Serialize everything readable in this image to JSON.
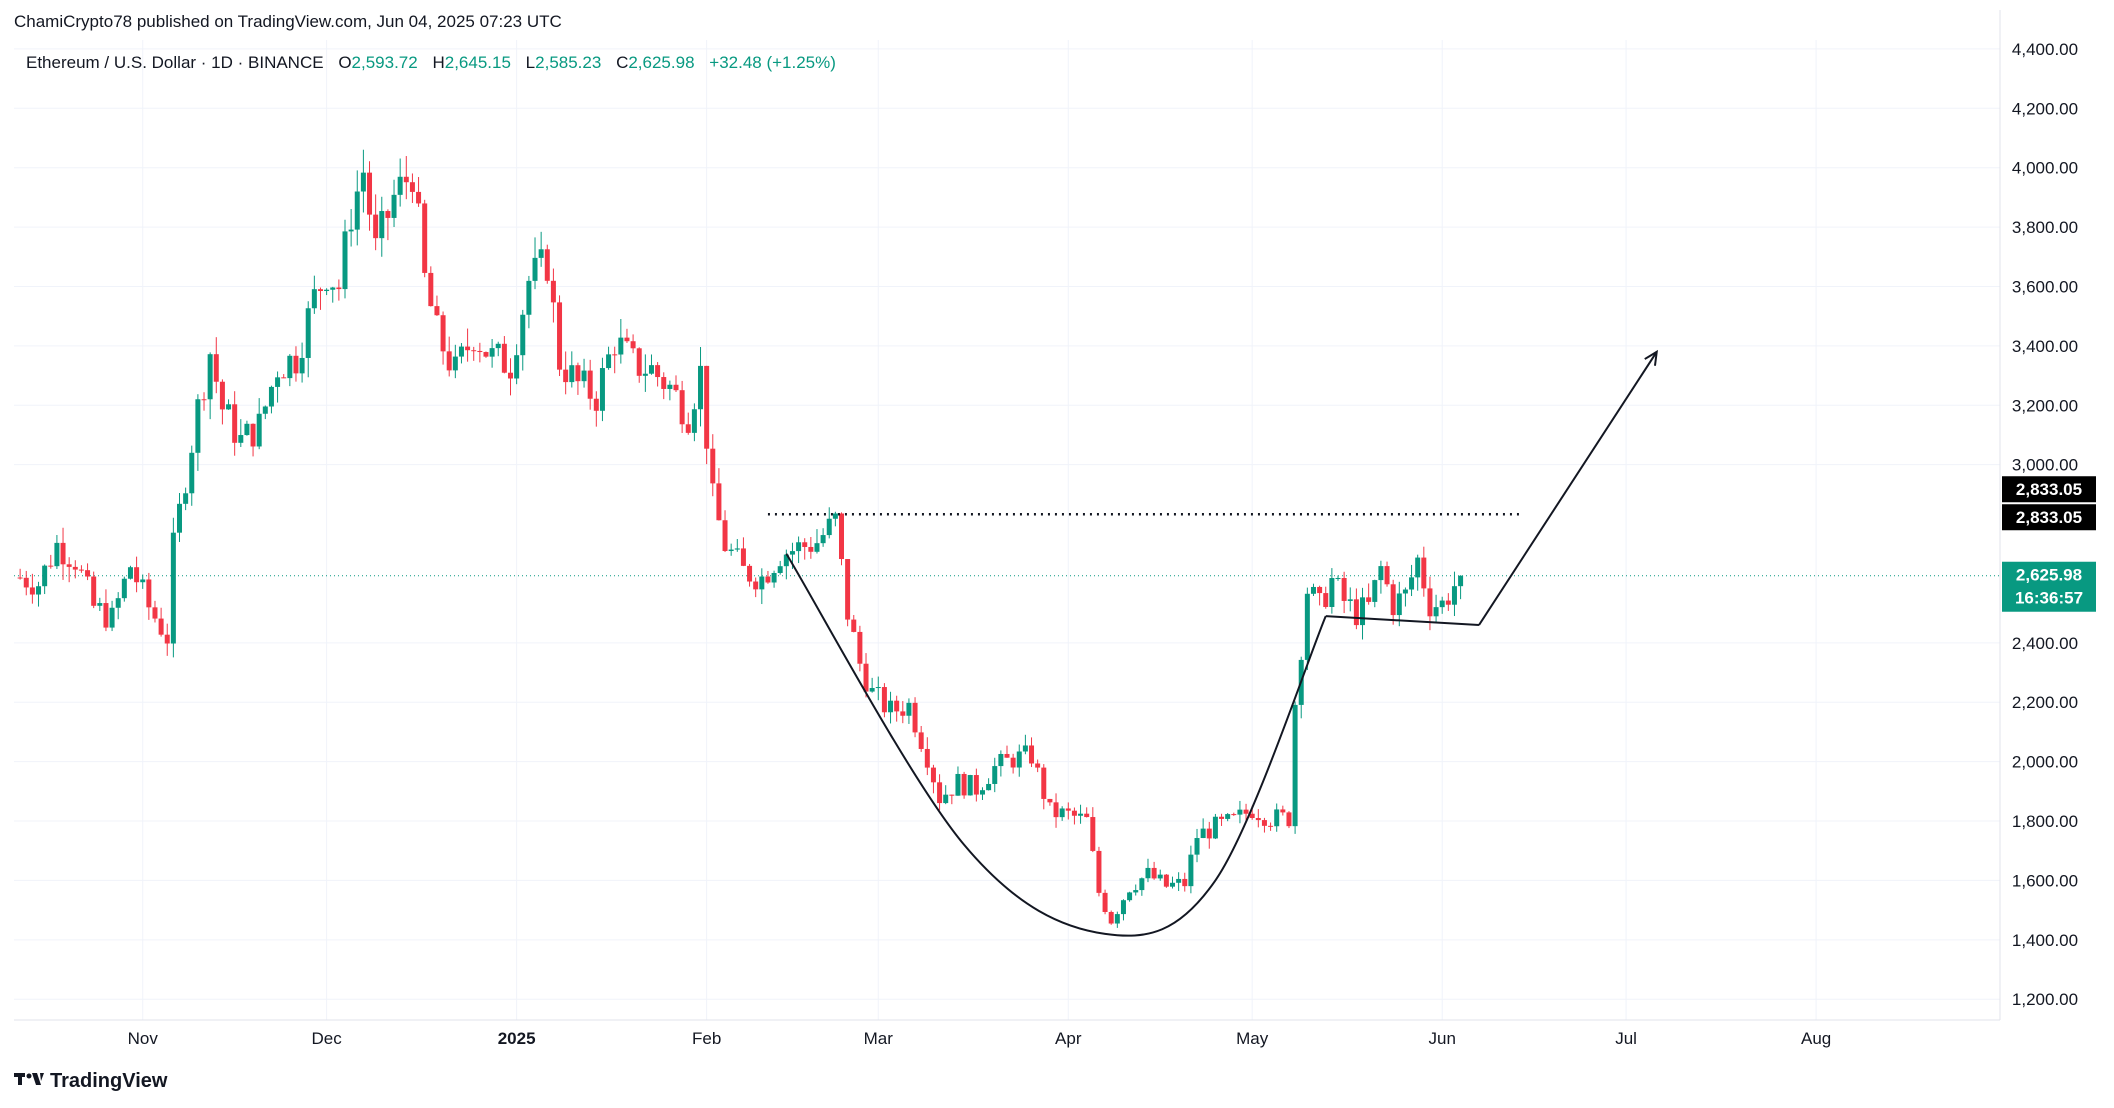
{
  "header": {
    "published": "ChamiCrypto78 published on TradingView.com, Jun 04, 2025 07:23 UTC"
  },
  "legend": {
    "symbol": "Ethereum / U.S. Dollar · 1D · BINANCE",
    "o_label": "O",
    "o_value": "2,593.72",
    "h_label": "H",
    "h_value": "2,645.15",
    "l_label": "L",
    "l_value": "2,585.23",
    "c_label": "C",
    "c_value": "2,625.98",
    "change": "+32.48 (+1.25%)"
  },
  "footer": {
    "brand": "TradingView",
    "logo_icon": "tradingview-logo-icon"
  },
  "colors": {
    "up": "#089981",
    "down": "#f23645",
    "grid": "#f0f3fa",
    "line": "#131722"
  },
  "chart_data": {
    "type": "candlestick",
    "price_ticks": [
      "4,400.00",
      "4,200.00",
      "4,000.00",
      "3,800.00",
      "3,600.00",
      "3,400.00",
      "3,200.00",
      "3,000.00",
      "2,400.00",
      "2,200.00",
      "2,000.00",
      "1,800.00",
      "1,600.00",
      "1,400.00",
      "1,200.00"
    ],
    "price_tick_values": [
      4400,
      4200,
      4000,
      3800,
      3600,
      3400,
      3200,
      3000,
      2400,
      2200,
      2000,
      1800,
      1600,
      1400,
      1200
    ],
    "ylim": [
      1130,
      4430
    ],
    "time_labels": [
      "Nov",
      "Dec",
      "2025",
      "Feb",
      "Mar",
      "Apr",
      "May",
      "Jun",
      "Jul",
      "Aug"
    ],
    "time_label_dates": [
      "2024-11-01",
      "2024-12-01",
      "2025-01-01",
      "2025-02-01",
      "2025-03-01",
      "2025-04-01",
      "2025-05-01",
      "2025-06-01",
      "2025-07-01",
      "2025-08-01"
    ],
    "xlim": [
      "2024-10-11",
      "2025-08-31"
    ],
    "last_price": "2,625.98",
    "last_price_value": 2625.98,
    "countdown": "16:36:57",
    "resistance": {
      "value": 2833.05,
      "labels": [
        "2,833.05",
        "2,833.05"
      ],
      "from": "2025-02-11",
      "to": "2025-06-14"
    },
    "cup_curve": [
      [
        "2025-02-14",
        2700
      ],
      [
        "2025-03-15",
        1720
      ],
      [
        "2025-04-07",
        1420
      ],
      [
        "2025-04-25",
        1600
      ],
      [
        "2025-05-13",
        2490
      ]
    ],
    "handle_line": [
      [
        "2025-05-13",
        2490
      ],
      [
        "2025-06-07",
        2460
      ]
    ],
    "projection_arrow": [
      [
        "2025-06-07",
        2460
      ],
      [
        "2025-07-06",
        3380
      ]
    ],
    "ohlc_sample": [
      {
        "d": "2024-10-12",
        "c": 2620
      },
      {
        "d": "2024-10-15",
        "c": 2600
      },
      {
        "d": "2024-10-18",
        "c": 2730
      },
      {
        "d": "2024-10-21",
        "c": 2680
      },
      {
        "d": "2024-10-24",
        "c": 2520
      },
      {
        "d": "2024-10-27",
        "c": 2480
      },
      {
        "d": "2024-10-30",
        "c": 2660
      },
      {
        "d": "2024-11-02",
        "c": 2520
      },
      {
        "d": "2024-11-05",
        "c": 2420
      },
      {
        "d": "2024-11-06",
        "c": 2720
      },
      {
        "d": "2024-11-08",
        "c": 2960
      },
      {
        "d": "2024-11-10",
        "c": 3190
      },
      {
        "d": "2024-11-12",
        "c": 3380
      },
      {
        "d": "2024-11-14",
        "c": 3190
      },
      {
        "d": "2024-11-17",
        "c": 3080
      },
      {
        "d": "2024-11-20",
        "c": 3130
      },
      {
        "d": "2024-11-23",
        "c": 3330
      },
      {
        "d": "2024-11-26",
        "c": 3360
      },
      {
        "d": "2024-11-29",
        "c": 3560
      },
      {
        "d": "2024-12-01",
        "c": 3650
      },
      {
        "d": "2024-12-03",
        "c": 3600
      },
      {
        "d": "2024-12-05",
        "c": 3850
      },
      {
        "d": "2024-12-07",
        "c": 3990
      },
      {
        "d": "2024-12-09",
        "c": 3720
      },
      {
        "d": "2024-12-12",
        "c": 3900
      },
      {
        "d": "2024-12-15",
        "c": 3990
      },
      {
        "d": "2024-12-17",
        "c": 3620
      },
      {
        "d": "2024-12-19",
        "c": 3440
      },
      {
        "d": "2024-12-22",
        "c": 3310
      },
      {
        "d": "2024-12-25",
        "c": 3440
      },
      {
        "d": "2024-12-28",
        "c": 3360
      },
      {
        "d": "2024-12-31",
        "c": 3340
      },
      {
        "d": "2025-01-03",
        "c": 3620
      },
      {
        "d": "2025-01-06",
        "c": 3680
      },
      {
        "d": "2025-01-08",
        "c": 3350
      },
      {
        "d": "2025-01-11",
        "c": 3270
      },
      {
        "d": "2025-01-14",
        "c": 3230
      },
      {
        "d": "2025-01-17",
        "c": 3420
      },
      {
        "d": "2025-01-20",
        "c": 3340
      },
      {
        "d": "2025-01-23",
        "c": 3320
      },
      {
        "d": "2025-01-26",
        "c": 3260
      },
      {
        "d": "2025-01-29",
        "c": 3170
      },
      {
        "d": "2025-01-31",
        "c": 3310
      },
      {
        "d": "2025-02-02",
        "c": 2880
      },
      {
        "d": "2025-02-04",
        "c": 2730
      },
      {
        "d": "2025-02-07",
        "c": 2640
      },
      {
        "d": "2025-02-10",
        "c": 2620
      },
      {
        "d": "2025-02-13",
        "c": 2700
      },
      {
        "d": "2025-02-16",
        "c": 2720
      },
      {
        "d": "2025-02-19",
        "c": 2740
      },
      {
        "d": "2025-02-22",
        "c": 2810
      },
      {
        "d": "2025-02-24",
        "c": 2500
      },
      {
        "d": "2025-02-26",
        "c": 2330
      },
      {
        "d": "2025-02-28",
        "c": 2230
      },
      {
        "d": "2025-03-03",
        "c": 2170
      },
      {
        "d": "2025-03-06",
        "c": 2190
      },
      {
        "d": "2025-03-09",
        "c": 2020
      },
      {
        "d": "2025-03-11",
        "c": 1880
      },
      {
        "d": "2025-03-14",
        "c": 1930
      },
      {
        "d": "2025-03-17",
        "c": 1910
      },
      {
        "d": "2025-03-20",
        "c": 1980
      },
      {
        "d": "2025-03-23",
        "c": 2010
      },
      {
        "d": "2025-03-26",
        "c": 2020
      },
      {
        "d": "2025-03-29",
        "c": 1830
      },
      {
        "d": "2025-04-01",
        "c": 1820
      },
      {
        "d": "2025-04-04",
        "c": 1800
      },
      {
        "d": "2025-04-06",
        "c": 1560
      },
      {
        "d": "2025-04-08",
        "c": 1470
      },
      {
        "d": "2025-04-11",
        "c": 1580
      },
      {
        "d": "2025-04-14",
        "c": 1620
      },
      {
        "d": "2025-04-17",
        "c": 1580
      },
      {
        "d": "2025-04-20",
        "c": 1590
      },
      {
        "d": "2025-04-22",
        "c": 1750
      },
      {
        "d": "2025-04-25",
        "c": 1780
      },
      {
        "d": "2025-04-28",
        "c": 1800
      },
      {
        "d": "2025-05-01",
        "c": 1840
      },
      {
        "d": "2025-05-04",
        "c": 1810
      },
      {
        "d": "2025-05-07",
        "c": 1810
      },
      {
        "d": "2025-05-08",
        "c": 2200
      },
      {
        "d": "2025-05-10",
        "c": 2580
      },
      {
        "d": "2025-05-12",
        "c": 2520
      },
      {
        "d": "2025-05-14",
        "c": 2610
      },
      {
        "d": "2025-05-16",
        "c": 2540
      },
      {
        "d": "2025-05-18",
        "c": 2500
      },
      {
        "d": "2025-05-20",
        "c": 2520
      },
      {
        "d": "2025-05-22",
        "c": 2650
      },
      {
        "d": "2025-05-24",
        "c": 2530
      },
      {
        "d": "2025-05-26",
        "c": 2560
      },
      {
        "d": "2025-05-28",
        "c": 2680
      },
      {
        "d": "2025-05-30",
        "c": 2530
      },
      {
        "d": "2025-06-01",
        "c": 2530
      },
      {
        "d": "2025-06-03",
        "c": 2594
      },
      {
        "d": "2025-06-04",
        "c": 2626
      }
    ]
  }
}
